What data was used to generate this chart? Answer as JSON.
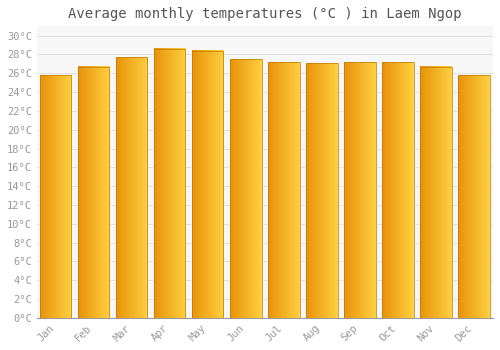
{
  "title": "Average monthly temperatures (°C ) in Laem Ngop",
  "months": [
    "Jan",
    "Feb",
    "Mar",
    "Apr",
    "May",
    "Jun",
    "Jul",
    "Aug",
    "Sep",
    "Oct",
    "Nov",
    "Dec"
  ],
  "values": [
    25.8,
    26.7,
    27.7,
    28.6,
    28.4,
    27.5,
    27.2,
    27.1,
    27.2,
    27.2,
    26.7,
    25.8
  ],
  "bar_color_left": "#E8920A",
  "bar_color_right": "#FFD040",
  "bar_color_mid": "#FFA500",
  "background_color": "#FFFFFF",
  "plot_bg_color": "#F7F7F7",
  "grid_color": "#DDDDDD",
  "ytick_labels": [
    "0°C",
    "2°C",
    "4°C",
    "6°C",
    "8°C",
    "10°C",
    "12°C",
    "14°C",
    "16°C",
    "18°C",
    "20°C",
    "22°C",
    "24°C",
    "26°C",
    "28°C",
    "30°C"
  ],
  "ytick_values": [
    0,
    2,
    4,
    6,
    8,
    10,
    12,
    14,
    16,
    18,
    20,
    22,
    24,
    26,
    28,
    30
  ],
  "ymax": 31,
  "ymin": 0,
  "title_fontsize": 10,
  "tick_fontsize": 7.5,
  "font_family": "monospace",
  "tick_color": "#999999",
  "title_color": "#555555"
}
